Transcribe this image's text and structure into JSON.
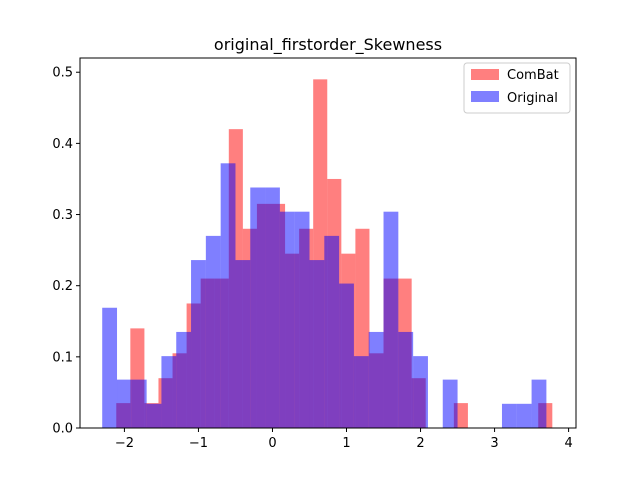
{
  "chart_data": {
    "type": "bar",
    "title": "original_firstorder_Skewness",
    "xlabel": "",
    "ylabel": "",
    "xlim": [
      -2.6,
      4.1
    ],
    "ylim": [
      0,
      0.52
    ],
    "xticks": [
      -2,
      -1,
      0,
      1,
      2,
      3,
      4
    ],
    "xtick_labels": [
      "−2",
      "−1",
      "0",
      "1",
      "2",
      "3",
      "4"
    ],
    "yticks": [
      0.0,
      0.1,
      0.2,
      0.3,
      0.4,
      0.5
    ],
    "ytick_labels": [
      "0.0",
      "0.1",
      "0.2",
      "0.3",
      "0.4",
      "0.5"
    ],
    "grid": false,
    "legend_position": "top-right",
    "series": [
      {
        "name": "ComBat",
        "color": "#ff0000",
        "opacity": 0.5,
        "bin_edges": [
          -2.11,
          -1.92,
          -1.73,
          -1.54,
          -1.35,
          -1.16,
          -0.97,
          -0.78,
          -0.59,
          -0.4,
          -0.21,
          -0.02,
          0.17,
          0.36,
          0.55,
          0.74,
          0.93,
          1.12,
          1.31,
          1.5,
          1.69,
          1.88,
          2.07,
          2.26,
          2.45,
          2.64,
          2.83,
          3.02,
          3.21,
          3.4,
          3.59,
          3.78
        ],
        "values": [
          0.035,
          0.14,
          0.035,
          0.07,
          0.105,
          0.175,
          0.21,
          0.21,
          0.42,
          0.28,
          0.315,
          0.315,
          0.245,
          0.28,
          0.49,
          0.35,
          0.245,
          0.28,
          0.105,
          0.21,
          0.21,
          0.07,
          0.0,
          0.0,
          0.035,
          0.0,
          0.0,
          0.0,
          0.0,
          0.0,
          0.035
        ]
      },
      {
        "name": "Original",
        "color": "#0000ff",
        "opacity": 0.5,
        "bin_edges": [
          -2.3,
          -2.1,
          -1.9,
          -1.7,
          -1.5,
          -1.3,
          -1.1,
          -0.9,
          -0.7,
          -0.5,
          -0.3,
          -0.1,
          0.1,
          0.3,
          0.5,
          0.7,
          0.9,
          1.1,
          1.3,
          1.5,
          1.7,
          1.9,
          2.1,
          2.3,
          2.5,
          2.7,
          2.9,
          3.1,
          3.3,
          3.5,
          3.7,
          3.9
        ],
        "values": [
          0.169,
          0.068,
          0.068,
          0.034,
          0.101,
          0.135,
          0.236,
          0.27,
          0.372,
          0.236,
          0.338,
          0.338,
          0.304,
          0.304,
          0.236,
          0.27,
          0.203,
          0.101,
          0.135,
          0.304,
          0.135,
          0.101,
          0.0,
          0.068,
          0.0,
          0.0,
          0.0,
          0.034,
          0.034,
          0.068,
          0.0
        ]
      }
    ]
  }
}
